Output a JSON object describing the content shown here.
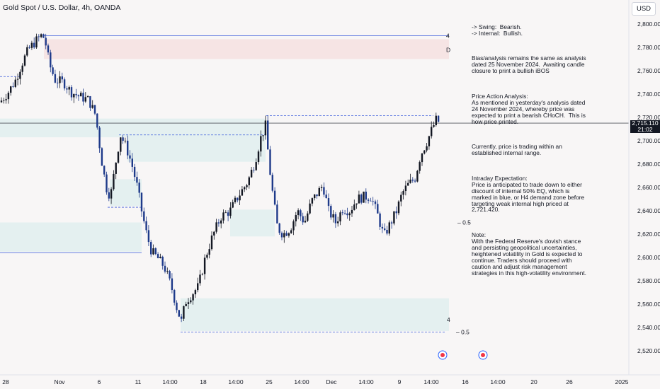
{
  "header": {
    "title": "Gold Spot / U.S. Dollar, 4h, OANDA",
    "currency_button": "USD"
  },
  "notes": [
    "-> Swing:  Bearish.\n-> Internal:  Bullish.",
    "Bias/analysis remains the same as analysis dated 25 November 2024.  Awaiting candle closure to print a bullish iBOS",
    "Price Action Analysis:\nAs mentioned in yesterday's analysis dated 24 November 2024, whereby price was expected to print a bearish CHoCH.  This is how price printed.",
    "Currently, price is trading within an established internal range.",
    "Intraday Expectation:\nPrice is anticipated to trade down to either discount of internal 50% EQ, which is marked in blue, or H4 demand zone before targeting weak internal high priced at 2,721.420.",
    "Note:\nWith the Federal Reserve's dovish stance and persisting geopolitical uncertainties, heightened volatility in Gold is expected to continue. Traders should proceed with caution and adjust risk management strategies in this high-volatility environment."
  ],
  "price_tag": {
    "price": "2,715.110",
    "countdown": "21:02"
  },
  "annotations": {
    "eq_upper": "0.5",
    "eq_lower": "0.5",
    "small_4": "4",
    "small_d": "D"
  },
  "colors": {
    "bull": "#131722",
    "bear": "#1e3a8a",
    "demand_zone": "#e3efef",
    "supply_zone": "#f6e3e3",
    "dashed_line": "#3b5bdb"
  },
  "chart_data": {
    "type": "candlestick",
    "symbol": "Gold Spot / U.S. Dollar",
    "interval": "4h",
    "y_axis": {
      "range": [
        2510,
        2810
      ],
      "ticks": [
        "2,800.000",
        "2,780.000",
        "2,760.000",
        "2,740.000",
        "2,720.000",
        "2,700.000",
        "2,680.000",
        "2,660.000",
        "2,640.000",
        "2,620.000",
        "2,600.000",
        "2,580.000",
        "2,560.000",
        "2,540.000",
        "2,520.000"
      ]
    },
    "x_axis": {
      "ticks": [
        "28",
        "Nov",
        "6",
        "11",
        "14:00",
        "18",
        "14:00",
        "25",
        "14:00",
        "Dec",
        "14:00",
        "9",
        "14:00",
        "16",
        "14:00",
        "20",
        "26",
        "2025"
      ]
    },
    "last_price": 2715.11,
    "close_path": [
      {
        "x": 0,
        "y": 2733
      },
      {
        "x": 12,
        "y": 2742
      },
      {
        "x": 22,
        "y": 2752
      },
      {
        "x": 30,
        "y": 2765
      },
      {
        "x": 40,
        "y": 2778
      },
      {
        "x": 50,
        "y": 2785
      },
      {
        "x": 58,
        "y": 2790
      },
      {
        "x": 63,
        "y": 2788
      },
      {
        "x": 70,
        "y": 2765
      },
      {
        "x": 78,
        "y": 2752
      },
      {
        "x": 90,
        "y": 2750
      },
      {
        "x": 100,
        "y": 2742
      },
      {
        "x": 112,
        "y": 2738
      },
      {
        "x": 125,
        "y": 2735
      },
      {
        "x": 135,
        "y": 2722
      },
      {
        "x": 143,
        "y": 2685
      },
      {
        "x": 150,
        "y": 2660
      },
      {
        "x": 156,
        "y": 2652
      },
      {
        "x": 163,
        "y": 2680
      },
      {
        "x": 170,
        "y": 2705
      },
      {
        "x": 178,
        "y": 2695
      },
      {
        "x": 186,
        "y": 2680
      },
      {
        "x": 194,
        "y": 2660
      },
      {
        "x": 200,
        "y": 2640
      },
      {
        "x": 207,
        "y": 2620
      },
      {
        "x": 214,
        "y": 2605
      },
      {
        "x": 222,
        "y": 2600
      },
      {
        "x": 232,
        "y": 2592
      },
      {
        "x": 242,
        "y": 2575
      },
      {
        "x": 250,
        "y": 2556
      },
      {
        "x": 256,
        "y": 2545
      },
      {
        "x": 262,
        "y": 2562
      },
      {
        "x": 270,
        "y": 2568
      },
      {
        "x": 280,
        "y": 2575
      },
      {
        "x": 290,
        "y": 2600
      },
      {
        "x": 300,
        "y": 2618
      },
      {
        "x": 312,
        "y": 2635
      },
      {
        "x": 325,
        "y": 2640
      },
      {
        "x": 336,
        "y": 2652
      },
      {
        "x": 350,
        "y": 2665
      },
      {
        "x": 360,
        "y": 2682
      },
      {
        "x": 368,
        "y": 2702
      },
      {
        "x": 375,
        "y": 2713
      },
      {
        "x": 380,
        "y": 2680
      },
      {
        "x": 386,
        "y": 2650
      },
      {
        "x": 392,
        "y": 2625
      },
      {
        "x": 400,
        "y": 2620
      },
      {
        "x": 410,
        "y": 2625
      },
      {
        "x": 420,
        "y": 2640
      },
      {
        "x": 430,
        "y": 2630
      },
      {
        "x": 440,
        "y": 2648
      },
      {
        "x": 448,
        "y": 2655
      },
      {
        "x": 456,
        "y": 2662
      },
      {
        "x": 464,
        "y": 2640
      },
      {
        "x": 474,
        "y": 2630
      },
      {
        "x": 484,
        "y": 2642
      },
      {
        "x": 494,
        "y": 2640
      },
      {
        "x": 504,
        "y": 2650
      },
      {
        "x": 514,
        "y": 2652
      },
      {
        "x": 524,
        "y": 2652
      },
      {
        "x": 534,
        "y": 2635
      },
      {
        "x": 542,
        "y": 2618
      },
      {
        "x": 552,
        "y": 2630
      },
      {
        "x": 560,
        "y": 2640
      },
      {
        "x": 568,
        "y": 2655
      },
      {
        "x": 576,
        "y": 2662
      },
      {
        "x": 586,
        "y": 2668
      },
      {
        "x": 594,
        "y": 2688
      },
      {
        "x": 602,
        "y": 2698
      },
      {
        "x": 610,
        "y": 2710
      },
      {
        "x": 616,
        "y": 2718
      },
      {
        "x": 622,
        "y": 2715
      }
    ],
    "zones": [
      {
        "kind": "supply",
        "top": 2787,
        "bottom": 2770
      },
      {
        "kind": "demand",
        "top": 2719,
        "bottom": 2703
      },
      {
        "kind": "demand",
        "top": 2705,
        "bottom": 2682
      },
      {
        "kind": "demand",
        "top": 2641,
        "bottom": 2618
      },
      {
        "kind": "demand",
        "top": 2630,
        "bottom": 2605
      },
      {
        "kind": "demand",
        "top": 2667,
        "bottom": 2644
      },
      {
        "kind": "demand",
        "top": 2565,
        "bottom": 2537
      }
    ],
    "levels": [
      {
        "price": 2790,
        "style": "solid"
      },
      {
        "price": 2721.42,
        "style": "dashed"
      },
      {
        "price": 2705,
        "style": "dashed"
      },
      {
        "price": 2643,
        "style": "dashed"
      },
      {
        "price": 2536,
        "style": "dashed"
      }
    ],
    "eq_levels": [
      2630,
      2536
    ]
  }
}
